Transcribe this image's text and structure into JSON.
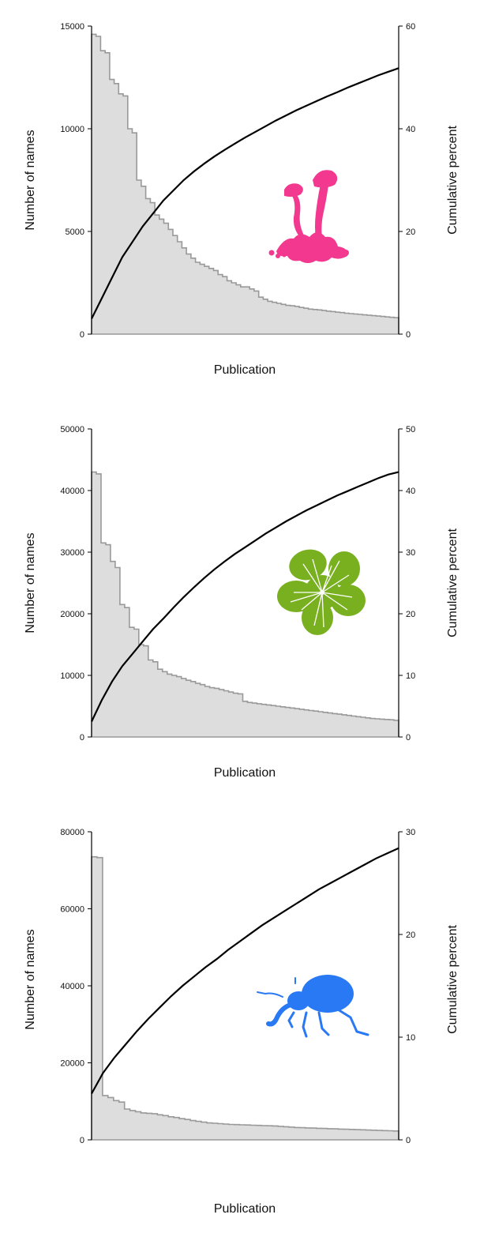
{
  "chart_data": [
    {
      "type": "area",
      "icon": "mushroom-icon",
      "icon_color": "#f2388f",
      "xlabel": "Publication",
      "ylabel_left": "Number of names",
      "ylabel_right": "Cumulative percent",
      "ylim_left": [
        0,
        15000
      ],
      "ylim_right": [
        0,
        60
      ],
      "yticks_left": [
        "0",
        "5000",
        "10000",
        "15000"
      ],
      "yticks_right": [
        "0",
        "20",
        "40",
        "60"
      ],
      "series": [
        {
          "values": [
            14600,
            14500,
            13800,
            13700,
            12400,
            12200,
            11700,
            11600,
            10000,
            9800,
            7500,
            7200,
            6600,
            6400,
            5800,
            5600,
            5400,
            5100,
            4800,
            4500,
            4200,
            3900,
            3700,
            3500,
            3400,
            3300,
            3200,
            3100,
            2900,
            2800,
            2600,
            2500,
            2400,
            2300,
            2300,
            2200,
            2100,
            1800,
            1700,
            1600,
            1550,
            1500,
            1450,
            1400,
            1380,
            1350,
            1300,
            1260,
            1220,
            1200,
            1180,
            1150,
            1120,
            1100,
            1070,
            1050,
            1020,
            1000,
            980,
            960,
            940,
            920,
            900,
            880,
            860,
            840,
            820,
            800
          ]
        },
        {
          "values": [
            3,
            7,
            11,
            15,
            18,
            21,
            23.5,
            26,
            28,
            30,
            31.7,
            33.2,
            34.6,
            35.9,
            37.1,
            38.3,
            39.4,
            40.5,
            41.6,
            42.6,
            43.6,
            44.5,
            45.4,
            46.3,
            47.1,
            48,
            48.8,
            49.6,
            50.4,
            51.1,
            51.8
          ]
        }
      ]
    },
    {
      "type": "area",
      "icon": "flower-icon",
      "icon_color": "#78b01f",
      "xlabel": "Publication",
      "ylabel_left": "Number of names",
      "ylabel_right": "Cumulative percent",
      "ylim_left": [
        0,
        50000
      ],
      "ylim_right": [
        0,
        50
      ],
      "yticks_left": [
        "0",
        "10000",
        "20000",
        "30000",
        "40000",
        "50000"
      ],
      "yticks_right": [
        "0",
        "10",
        "20",
        "30",
        "40",
        "50"
      ],
      "series": [
        {
          "values": [
            43000,
            42700,
            31500,
            31200,
            28500,
            27500,
            21500,
            21000,
            17800,
            17500,
            15000,
            14800,
            12500,
            12200,
            11000,
            10600,
            10200,
            10000,
            9800,
            9500,
            9200,
            9000,
            8700,
            8500,
            8200,
            8000,
            7900,
            7700,
            7500,
            7300,
            7100,
            7000,
            5800,
            5600,
            5500,
            5400,
            5300,
            5200,
            5100,
            5000,
            4900,
            4800,
            4700,
            4600,
            4500,
            4400,
            4300,
            4200,
            4100,
            4000,
            3900,
            3800,
            3700,
            3600,
            3500,
            3400,
            3300,
            3200,
            3100,
            3000,
            2950,
            2900,
            2850,
            2800,
            2700
          ]
        },
        {
          "values": [
            2.5,
            6,
            9,
            11.5,
            13.5,
            15.5,
            17.5,
            19.2,
            21,
            22.7,
            24.3,
            25.8,
            27.2,
            28.5,
            29.7,
            30.8,
            31.9,
            33,
            34,
            35,
            35.9,
            36.8,
            37.6,
            38.4,
            39.2,
            39.9,
            40.6,
            41.3,
            42,
            42.6,
            43
          ]
        }
      ]
    },
    {
      "type": "area",
      "icon": "beetle-icon",
      "icon_color": "#2979f5",
      "xlabel": "Publication",
      "ylabel_left": "Number of names",
      "ylabel_right": "Cumulative percent",
      "ylim_left": [
        0,
        80000
      ],
      "ylim_right": [
        0,
        30
      ],
      "yticks_left": [
        "0",
        "20000",
        "40000",
        "60000",
        "80000"
      ],
      "yticks_right": [
        "0",
        "10",
        "20",
        "30"
      ],
      "series": [
        {
          "values": [
            73500,
            73300,
            11500,
            11000,
            10200,
            9800,
            8000,
            7600,
            7300,
            7000,
            6900,
            6800,
            6500,
            6300,
            6000,
            5800,
            5500,
            5300,
            5000,
            4800,
            4600,
            4400,
            4300,
            4200,
            4100,
            4000,
            3950,
            3900,
            3850,
            3800,
            3750,
            3700,
            3650,
            3600,
            3500,
            3400,
            3300,
            3200,
            3150,
            3100,
            3050,
            3000,
            2950,
            2900,
            2850,
            2800,
            2750,
            2700,
            2650,
            2600,
            2550,
            2500,
            2450,
            2400,
            2350,
            2300
          ]
        },
        {
          "values": [
            4.5,
            6.5,
            8,
            9.3,
            10.6,
            11.8,
            12.9,
            14,
            15,
            15.9,
            16.8,
            17.6,
            18.5,
            19.3,
            20.1,
            20.9,
            21.6,
            22.3,
            23,
            23.7,
            24.4,
            25,
            25.6,
            26.2,
            26.8,
            27.4,
            27.9,
            28.4
          ]
        }
      ]
    }
  ]
}
